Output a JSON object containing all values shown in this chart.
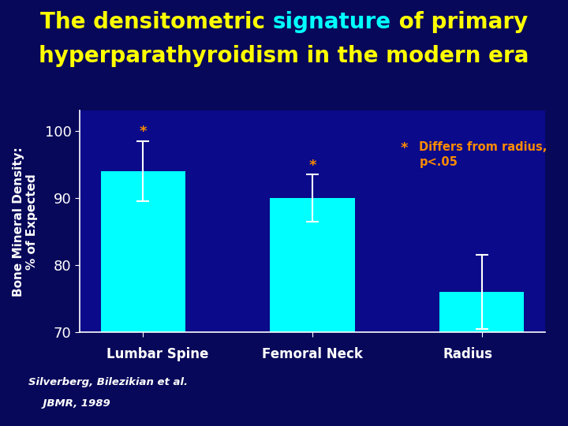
{
  "title_parts_line1": [
    {
      "text": "The densitometric ",
      "color": "#FFFF00"
    },
    {
      "text": "signature",
      "color": "#00FFFF"
    },
    {
      "text": " of primary",
      "color": "#FFFF00"
    }
  ],
  "title_line2": "hyperparathyroidism in the modern era",
  "title_color_line2": "#FFFF00",
  "title_fontsize": 20,
  "categories": [
    "Lumbar Spine",
    "Femoral Neck",
    "Radius"
  ],
  "values": [
    94.0,
    90.0,
    76.0
  ],
  "errors": [
    4.5,
    3.5,
    5.5
  ],
  "bar_color": "#00FFFF",
  "background_color": "#08085A",
  "plot_bg_color": "#0A0A8A",
  "axis_color": "#FFFFFF",
  "tick_color": "#FFFFFF",
  "ylabel_line1": "Bone Mineral Density:",
  "ylabel_line2": "% of Expected",
  "ylim": [
    70,
    103
  ],
  "yticks": [
    70,
    80,
    90,
    100
  ],
  "annotation_star": "*",
  "annotation_text": "Differs from radius,\np<.05",
  "annotation_color": "#FF8C00",
  "asterisk_color": "#FF8C00",
  "has_asterisk": [
    true,
    true,
    false
  ],
  "citation_line1": "Silverberg, Bilezikian et al.",
  "citation_line2": "    JBMR, 1989",
  "error_bar_color": "#FFFFFF",
  "figsize": [
    7.2,
    5.4
  ],
  "dpi": 100
}
